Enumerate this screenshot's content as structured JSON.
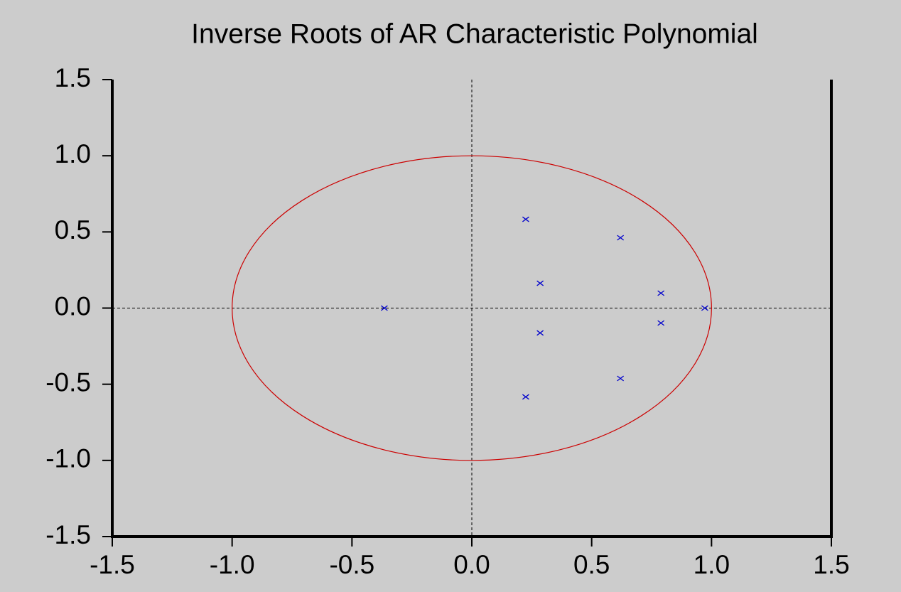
{
  "chart_data": {
    "type": "scatter",
    "title": "Inverse Roots of AR Characteristic Polynomial",
    "x": [
      -0.365,
      0.225,
      0.225,
      0.62,
      0.62,
      0.285,
      0.285,
      0.789,
      0.789,
      0.972
    ],
    "values": [
      0,
      0.583,
      -0.583,
      0.462,
      -0.462,
      0.163,
      -0.163,
      0.098,
      -0.098,
      0
    ],
    "color": "#0000cc",
    "marker": "x",
    "xlim": [
      -1.5,
      1.5
    ],
    "ylim": [
      -1.5,
      1.5
    ],
    "xticks": [
      -1.5,
      {
        "value": -1,
        "label": "-1.0"
      },
      -0.5,
      {
        "value": 0,
        "label": "0.0"
      },
      0.5,
      {
        "value": 1,
        "label": "1.0"
      },
      1.5
    ],
    "yticks": [
      1.5,
      {
        "value": 1,
        "label": "1.0"
      },
      0.5,
      {
        "value": 0,
        "label": "0.0"
      },
      -0.5,
      {
        "value": -1,
        "label": "-1.0"
      },
      -1.5
    ],
    "unit_circle": true,
    "unit_circle_color": "#cc0000",
    "zero_lines": true
  }
}
